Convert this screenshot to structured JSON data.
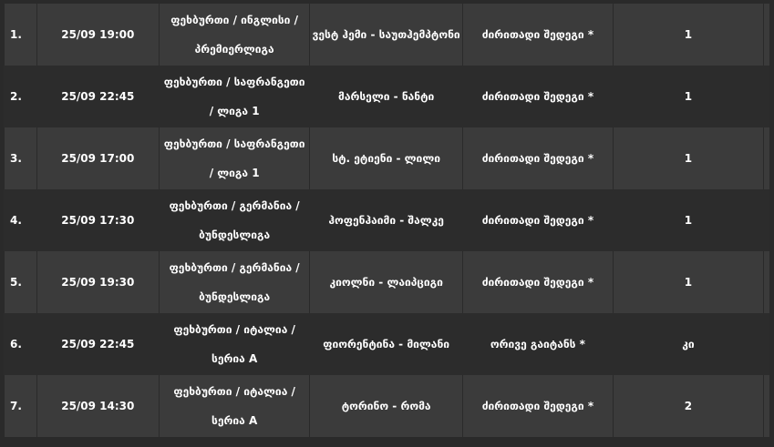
{
  "rows": [
    {
      "num": "1.",
      "date": "25/09 19:00",
      "league": "ფეხბურთი / ინგლისი / პრემიერლიგა",
      "match": "ვესტ ჰემი - საუთჰემპტონი",
      "market": "ძირითადი შედეგი *",
      "pick": "1"
    },
    {
      "num": "2.",
      "date": "25/09 22:45",
      "league": "ფეხბურთი / საფრანგეთი / ლიგა 1",
      "match": "მარსელი - ნანტი",
      "market": "ძირითადი შედეგი *",
      "pick": "1"
    },
    {
      "num": "3.",
      "date": "25/09 17:00",
      "league": "ფეხბურთი / საფრანგეთი / ლიგა 1",
      "match": "სტ. ეტიენი - ლილი",
      "market": "ძირითადი შედეგი *",
      "pick": "1"
    },
    {
      "num": "4.",
      "date": "25/09 17:30",
      "league": "ფეხბურთი / გერმანია / ბუნდესლიგა",
      "match": "ჰოფენჰაიმი - შალკე",
      "market": "ძირითადი შედეგი *",
      "pick": "1"
    },
    {
      "num": "5.",
      "date": "25/09 19:30",
      "league": "ფეხბურთი / გერმანია / ბუნდესლიგა",
      "match": "კიოლნი - ლაიპციგი",
      "market": "ძირითადი შედეგი *",
      "pick": "1"
    },
    {
      "num": "6.",
      "date": "25/09 22:45",
      "league": "ფეხბურთი / იტალია / სერია A",
      "match": "ფიორენტინა - მილანი",
      "market": "ორივე გაიტანს *",
      "pick": "კი"
    },
    {
      "num": "7.",
      "date": "25/09 14:30",
      "league": "ფეხბურთი / იტალია / სერია A",
      "match": "ტორინო - რომა",
      "market": "ძირითადი შედეგი *",
      "pick": "2"
    }
  ]
}
